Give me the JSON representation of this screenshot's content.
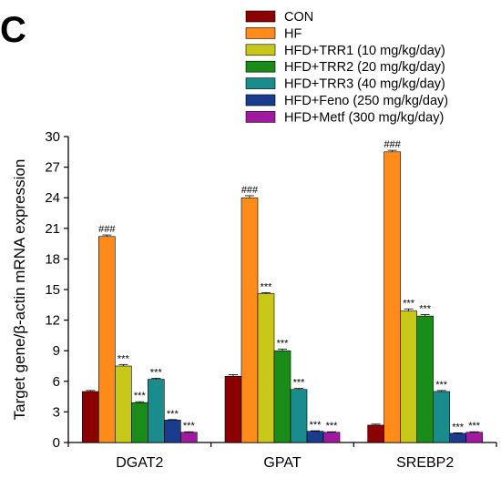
{
  "panel_label": "C",
  "chart_data": {
    "type": "bar",
    "title": "",
    "ylabel": "Target gene/β-actin mRNA expression",
    "xlabel": "",
    "ylim": [
      0,
      30
    ],
    "yticks": [
      0,
      3,
      6,
      9,
      12,
      15,
      18,
      21,
      24,
      27,
      30
    ],
    "grid": false,
    "legend_position": "top-right",
    "categories": [
      "DGAT2",
      "GPAT",
      "SREBP2"
    ],
    "series": [
      {
        "name": "CON",
        "color": "#8b0000",
        "values": [
          5.0,
          6.5,
          1.7
        ],
        "errors": [
          0.1,
          0.15,
          0.1
        ],
        "annotations": [
          "",
          "",
          ""
        ]
      },
      {
        "name": "HF",
        "color": "#ff8c1a",
        "values": [
          20.2,
          24.0,
          28.5
        ],
        "errors": [
          0.15,
          0.2,
          0.15
        ],
        "annotations": [
          "###",
          "###",
          "###"
        ]
      },
      {
        "name": "HFD+TRR1  (10 mg/kg/day)",
        "color": "#c8c81a",
        "values": [
          7.5,
          14.6,
          12.9
        ],
        "errors": [
          0.15,
          0.1,
          0.2
        ],
        "annotations": [
          "***",
          "***",
          "***"
        ]
      },
      {
        "name": "HFD+TRR2  (20 mg/kg/day)",
        "color": "#1a8c1a",
        "values": [
          3.9,
          9.0,
          12.4
        ],
        "errors": [
          0.1,
          0.15,
          0.15
        ],
        "annotations": [
          "***",
          "***",
          "***"
        ]
      },
      {
        "name": "HFD+TRR3  (40 mg/kg/day)",
        "color": "#1a8c8c",
        "values": [
          6.2,
          5.2,
          5.0
        ],
        "errors": [
          0.1,
          0.1,
          0.1
        ],
        "annotations": [
          "***",
          "***",
          "***"
        ]
      },
      {
        "name": "HFD+Feno (250 mg/kg/day)",
        "color": "#1a3c8c",
        "values": [
          2.2,
          1.1,
          0.9
        ],
        "errors": [
          0.05,
          0.05,
          0.05
        ],
        "annotations": [
          "***",
          "***",
          "***"
        ]
      },
      {
        "name": "HFD+Metf  (300 mg/kg/day)",
        "color": "#a01aa0",
        "values": [
          1.0,
          1.0,
          1.0
        ],
        "errors": [
          0.05,
          0.05,
          0.05
        ],
        "annotations": [
          "***",
          "***",
          "***"
        ]
      }
    ]
  }
}
